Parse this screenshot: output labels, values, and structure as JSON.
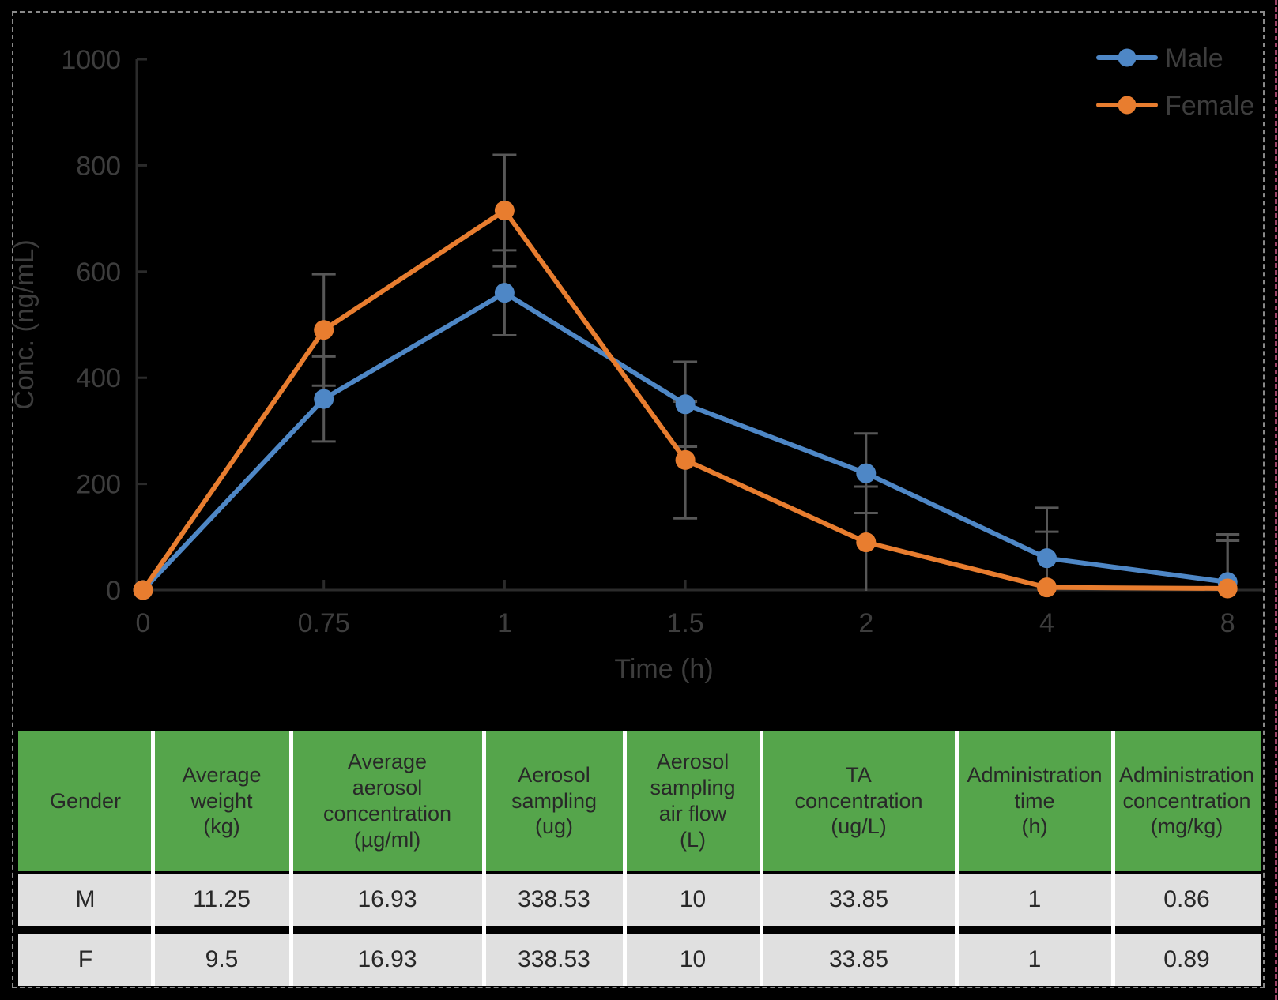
{
  "figure": {
    "background": "#000000",
    "border_color": "#8a8a8a",
    "edge_marker_color": "#9c4066"
  },
  "chart_data": {
    "type": "line",
    "title": "",
    "xlabel": "Time (h)",
    "ylabel": "Conc. (ng/mL)",
    "categories": [
      "0",
      "0.75",
      "1",
      "1.5",
      "2",
      "4",
      "8"
    ],
    "ylim": [
      0,
      1000
    ],
    "ytick_step": 200,
    "ytick_labels": [
      "0",
      "200",
      "400",
      "600",
      "800",
      "1000"
    ],
    "grid": false,
    "legend_position": "top-right",
    "error_bars": true,
    "series": [
      {
        "name": "Male",
        "color": "#4E87C6",
        "values": [
          0,
          360,
          560,
          350,
          220,
          60,
          15
        ],
        "error": [
          0,
          80,
          80,
          80,
          75,
          95,
          90
        ]
      },
      {
        "name": "Female",
        "color": "#E87D2F",
        "values": [
          0,
          490,
          715,
          245,
          90,
          5,
          3
        ],
        "error": [
          0,
          105,
          105,
          110,
          105,
          105,
          90
        ]
      }
    ],
    "error_bar_color": "#575757",
    "axis_color": "#2b2b2b",
    "text_color": "#3d3d3d"
  },
  "table": {
    "header_bg": "#55A54B",
    "row_bg": "#E0E0E0",
    "separator_color": "#ffffff",
    "text_color": "#282828",
    "columns": [
      "Gender",
      "Average\nweight\n(kg)",
      "Average\naerosol\nconcentration\n(µg/ml)",
      "Aerosol\nsampling\n(ug)",
      "Aerosol\nsampling\nair flow\n(L)",
      "TA\nconcentration\n(ug/L)",
      "Administration\ntime\n(h)",
      "Administration\nconcentration\n(mg/kg)"
    ],
    "rows": [
      [
        "M",
        "11.25",
        "16.93",
        "338.53",
        "10",
        "33.85",
        "1",
        "0.86"
      ],
      [
        "F",
        "9.5",
        "16.93",
        "338.53",
        "10",
        "33.85",
        "1",
        "0.89"
      ]
    ]
  }
}
